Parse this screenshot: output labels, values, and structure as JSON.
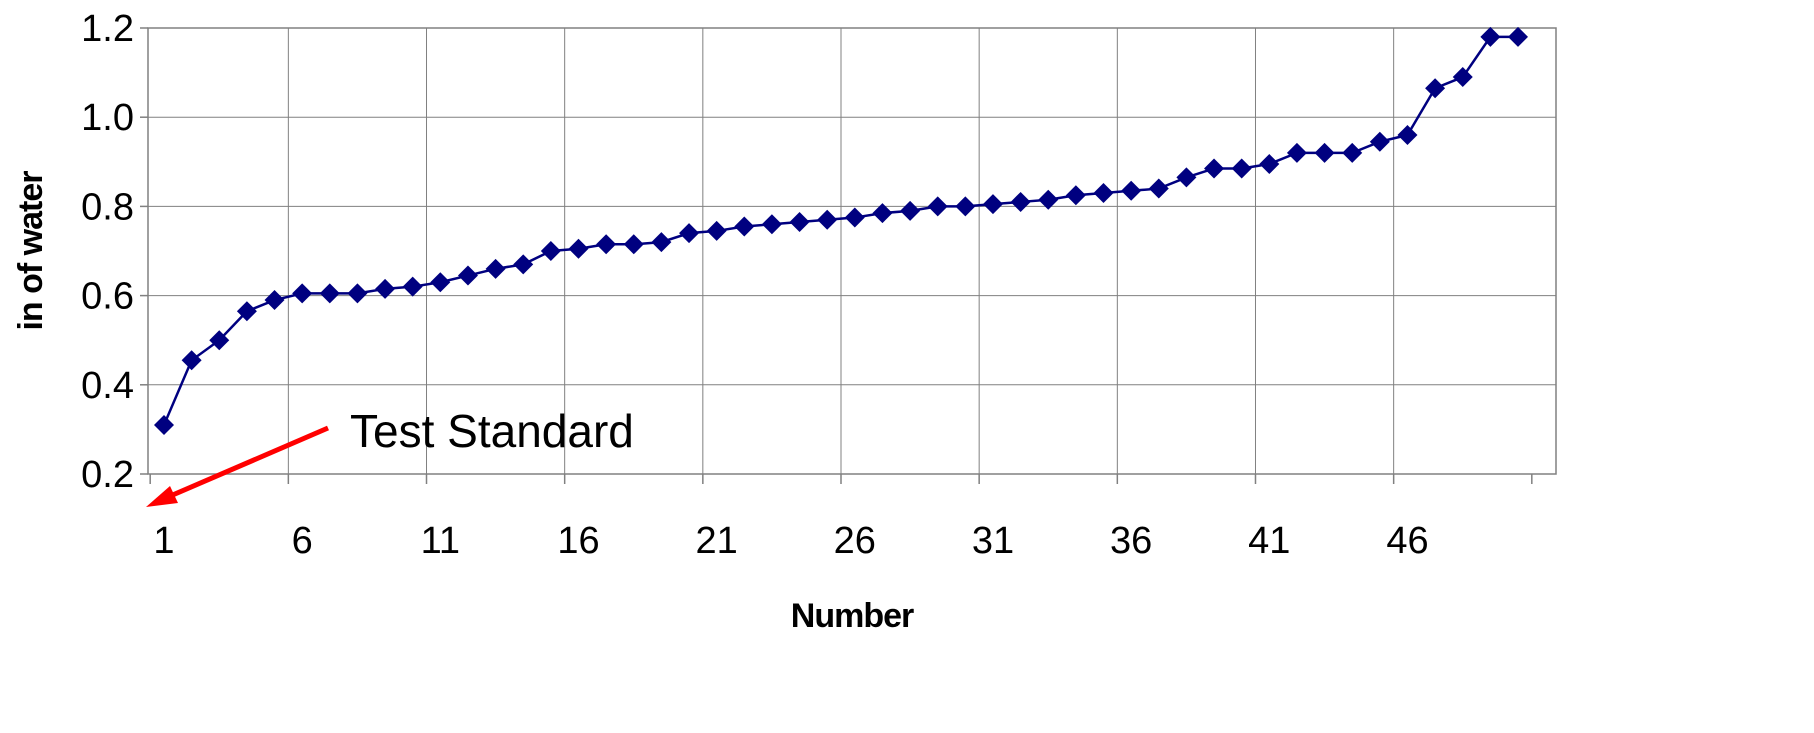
{
  "chart_data": {
    "type": "line",
    "xlabel": "Number",
    "ylabel": "in of water",
    "xlim": [
      1,
      50
    ],
    "ylim": [
      0.2,
      1.2
    ],
    "yticks": [
      "0.2",
      "0.4",
      "0.6",
      "0.8",
      "1.0",
      "1.2"
    ],
    "xticks": [
      "1",
      "6",
      "11",
      "16",
      "21",
      "26",
      "31",
      "36",
      "41",
      "46"
    ],
    "grid": true,
    "series": [
      {
        "color": "#000080",
        "marker": "diamond",
        "x": [
          1,
          2,
          3,
          4,
          5,
          6,
          7,
          8,
          9,
          10,
          11,
          12,
          13,
          14,
          15,
          16,
          17,
          18,
          19,
          20,
          21,
          22,
          23,
          24,
          25,
          26,
          27,
          28,
          29,
          30,
          31,
          32,
          33,
          34,
          35,
          36,
          37,
          38,
          39,
          40,
          41,
          42,
          43,
          44,
          45,
          46,
          47,
          48,
          49,
          50
        ],
        "values": [
          0.31,
          0.455,
          0.5,
          0.565,
          0.59,
          0.605,
          0.605,
          0.605,
          0.615,
          0.62,
          0.63,
          0.645,
          0.66,
          0.67,
          0.7,
          0.705,
          0.715,
          0.715,
          0.72,
          0.74,
          0.745,
          0.755,
          0.76,
          0.765,
          0.77,
          0.775,
          0.785,
          0.79,
          0.8,
          0.8,
          0.805,
          0.81,
          0.815,
          0.825,
          0.83,
          0.835,
          0.84,
          0.865,
          0.885,
          0.885,
          0.895,
          0.92,
          0.92,
          0.92,
          0.945,
          0.96,
          1.065,
          1.09,
          1.18,
          1.18
        ]
      }
    ],
    "annotation": {
      "text": "Test Standard",
      "arrow_color": "#ff0000"
    }
  }
}
